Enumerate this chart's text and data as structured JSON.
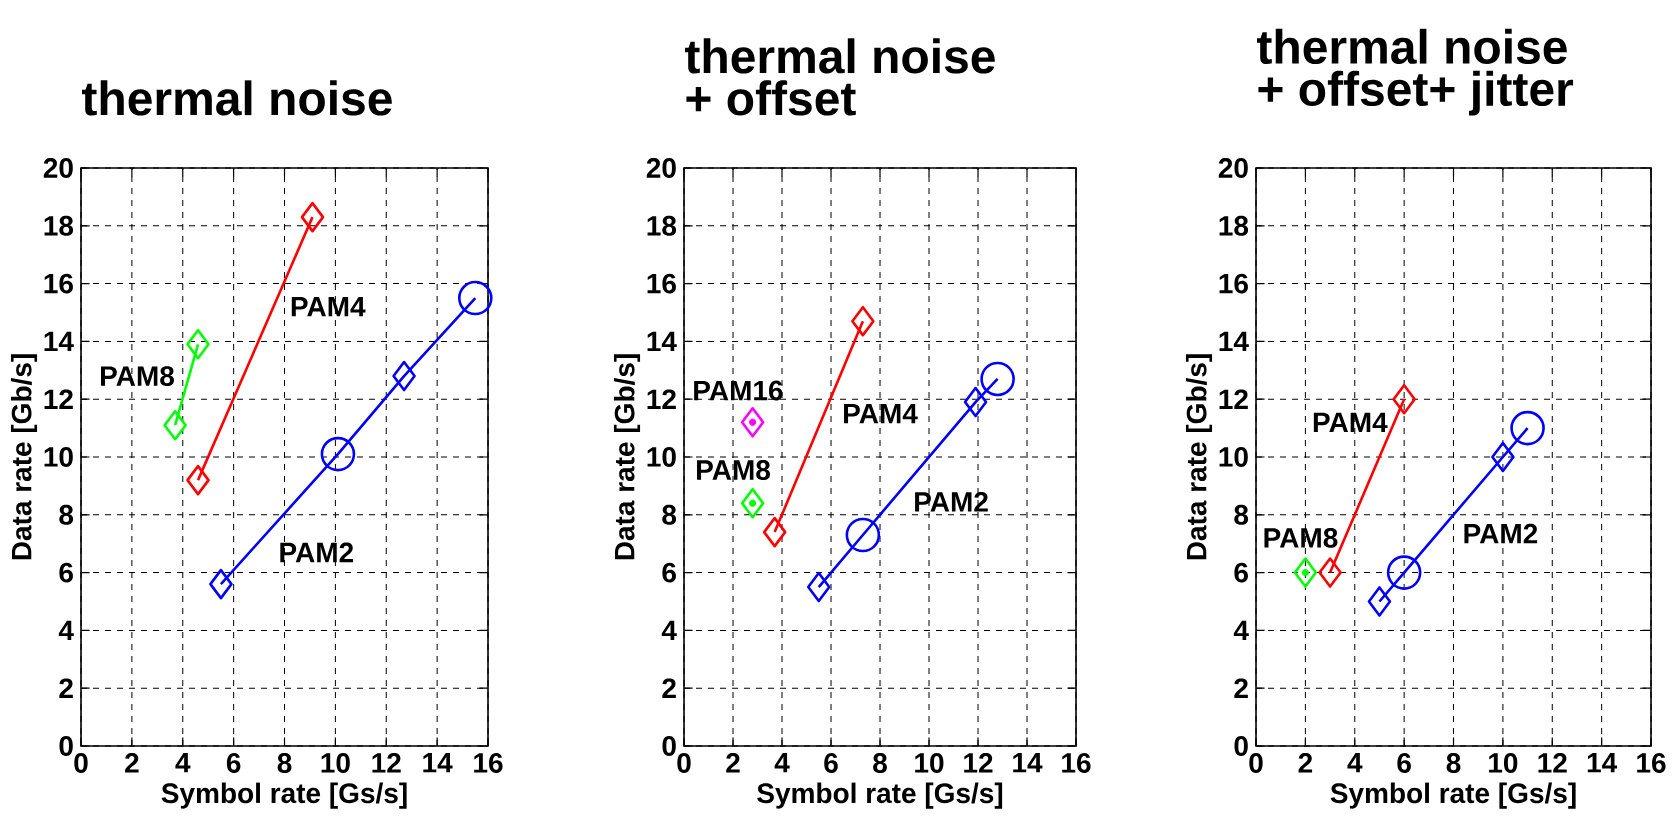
{
  "chart_data": [
    {
      "type": "line",
      "title": "thermal noise",
      "xlabel": "Symbol rate [Gs/s]",
      "ylabel": "Data rate [Gb/s]",
      "xlim": [
        0,
        16
      ],
      "ylim": [
        0,
        20
      ],
      "xticks": [
        0,
        2,
        4,
        6,
        8,
        10,
        12,
        14,
        16
      ],
      "yticks": [
        0,
        2,
        4,
        6,
        8,
        10,
        12,
        14,
        16,
        18,
        20
      ],
      "grid": true,
      "series": [
        {
          "type": "line",
          "color": "#00ff00",
          "marker": "diamond",
          "x": [
            3.7,
            4.6
          ],
          "values": [
            11.1,
            13.9
          ]
        },
        {
          "type": "line",
          "color": "#ff0000",
          "marker": "diamond",
          "x": [
            4.6,
            9.1
          ],
          "values": [
            9.2,
            18.3
          ]
        },
        {
          "type": "line",
          "color": "#0000ff",
          "marker": "none",
          "x": [
            5.5,
            10.1,
            12.7,
            15.5
          ],
          "values": [
            5.6,
            10.1,
            12.8,
            15.5
          ]
        },
        {
          "type": "scatter",
          "color": "#0000ff",
          "marker": "diamond",
          "x": [
            5.5,
            12.7
          ],
          "values": [
            5.6,
            12.8
          ]
        },
        {
          "type": "scatter",
          "color": "#0000ff",
          "marker": "circle",
          "x": [
            10.1,
            15.5
          ],
          "values": [
            10.1,
            15.5
          ]
        }
      ],
      "annotations": [
        "PAM8",
        "PAM4",
        "PAM2"
      ]
    },
    {
      "type": "line",
      "title": "thermal noise",
      "subtitle": "+ offset",
      "xlabel": "Symbol rate [Gs/s]",
      "ylabel": "Data rate [Gb/s]",
      "xlim": [
        0,
        16
      ],
      "ylim": [
        0,
        20
      ],
      "xticks": [
        0,
        2,
        4,
        6,
        8,
        10,
        12,
        14,
        16
      ],
      "yticks": [
        0,
        2,
        4,
        6,
        8,
        10,
        12,
        14,
        16,
        18,
        20
      ],
      "grid": true,
      "series": [
        {
          "type": "scatter",
          "color": "#ff00ff",
          "marker": "diamond",
          "x": [
            2.8
          ],
          "values": [
            11.2
          ]
        },
        {
          "type": "scatter",
          "color": "#00ff00",
          "marker": "diamond",
          "x": [
            2.8
          ],
          "values": [
            8.4
          ]
        },
        {
          "type": "line",
          "color": "#ff0000",
          "marker": "diamond",
          "x": [
            3.7,
            7.3
          ],
          "values": [
            7.4,
            14.7
          ]
        },
        {
          "type": "line",
          "color": "#0000ff",
          "marker": "none",
          "x": [
            5.5,
            7.3,
            11.9,
            12.8
          ],
          "values": [
            5.5,
            7.3,
            11.9,
            12.7
          ]
        },
        {
          "type": "scatter",
          "color": "#0000ff",
          "marker": "diamond",
          "x": [
            5.5,
            11.9
          ],
          "values": [
            5.5,
            11.9
          ]
        },
        {
          "type": "scatter",
          "color": "#0000ff",
          "marker": "circle",
          "x": [
            7.3,
            12.8
          ],
          "values": [
            7.3,
            12.7
          ]
        }
      ],
      "annotations": [
        "PAM16",
        "PAM8",
        "PAM4",
        "PAM2"
      ]
    },
    {
      "type": "line",
      "title": "thermal noise",
      "subtitle": "+ offset+ jitter",
      "xlabel": "Symbol rate [Gs/s]",
      "ylabel": "Data rate [Gb/s]",
      "xlim": [
        0,
        16
      ],
      "ylim": [
        0,
        20
      ],
      "xticks": [
        0,
        2,
        4,
        6,
        8,
        10,
        12,
        14,
        16
      ],
      "yticks": [
        0,
        2,
        4,
        6,
        8,
        10,
        12,
        14,
        16,
        18,
        20
      ],
      "grid": true,
      "series": [
        {
          "type": "scatter",
          "color": "#00ff00",
          "marker": "diamond",
          "x": [
            2
          ],
          "values": [
            6
          ]
        },
        {
          "type": "line",
          "color": "#ff0000",
          "marker": "diamond",
          "x": [
            3,
            6
          ],
          "values": [
            6,
            12
          ]
        },
        {
          "type": "line",
          "color": "#0000ff",
          "marker": "none",
          "x": [
            5,
            6,
            10,
            11
          ],
          "values": [
            5,
            6,
            10,
            11
          ]
        },
        {
          "type": "scatter",
          "color": "#0000ff",
          "marker": "diamond",
          "x": [
            5,
            10
          ],
          "values": [
            5,
            10
          ]
        },
        {
          "type": "scatter",
          "color": "#0000ff",
          "marker": "circle",
          "x": [
            6,
            11
          ],
          "values": [
            6,
            11
          ]
        }
      ],
      "annotations": [
        "PAM4",
        "PAM8",
        "PAM2"
      ]
    }
  ]
}
